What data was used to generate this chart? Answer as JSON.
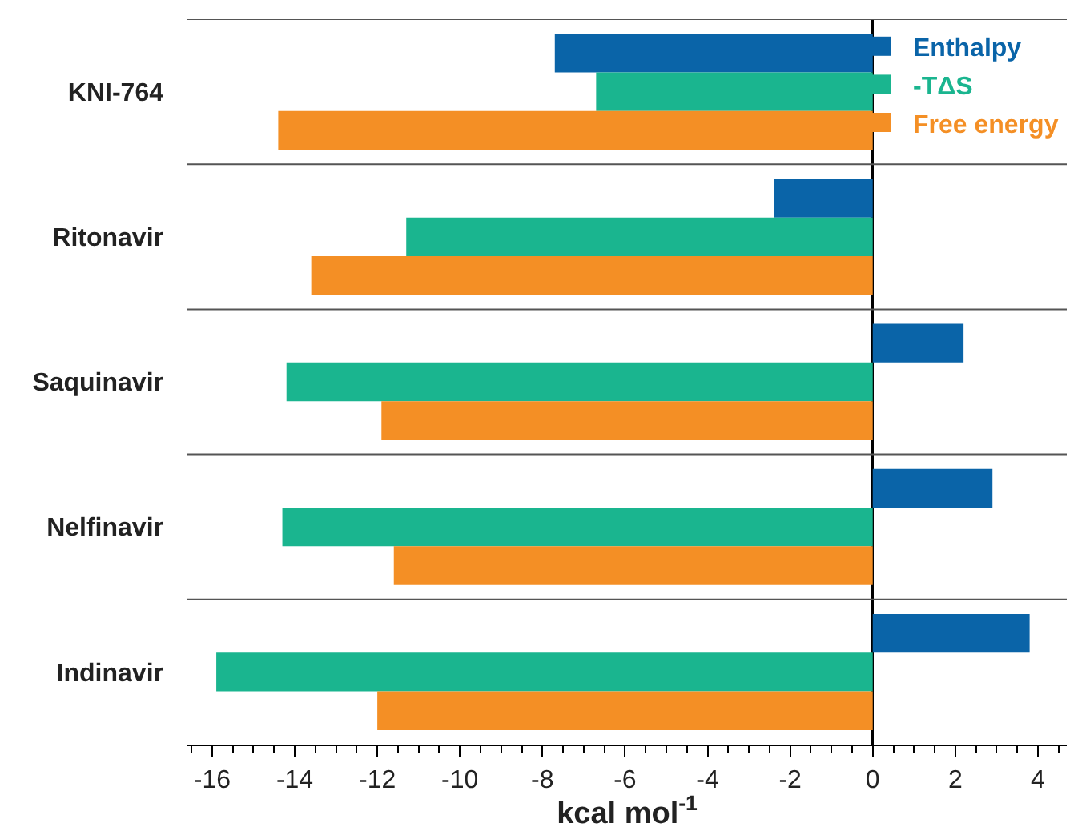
{
  "chart_data": {
    "type": "bar",
    "orientation": "horizontal",
    "categories": [
      "KNI-764",
      "Ritonavir",
      "Saquinavir",
      "Nelfinavir",
      "Indinavir"
    ],
    "series": [
      {
        "name": "Enthalpy",
        "color": "#0a64a8",
        "values": [
          -7.7,
          -2.4,
          2.2,
          2.9,
          3.8
        ]
      },
      {
        "name": "-TΔS",
        "color": "#1ab58f",
        "values": [
          -6.7,
          -11.3,
          -14.2,
          -14.3,
          -15.9
        ]
      },
      {
        "name": "Free energy",
        "color": "#f48f25",
        "values": [
          -14.4,
          -13.6,
          -11.9,
          -11.6,
          -12.0
        ]
      }
    ],
    "xlabel": "kcal mol$^{-1}$",
    "xlim": [
      -16.6,
      4.7
    ],
    "xticks": [
      -16,
      -14,
      -12,
      -10,
      -8,
      -6,
      -4,
      -2,
      0,
      2,
      4
    ],
    "grid": "y",
    "legend": "top right"
  }
}
